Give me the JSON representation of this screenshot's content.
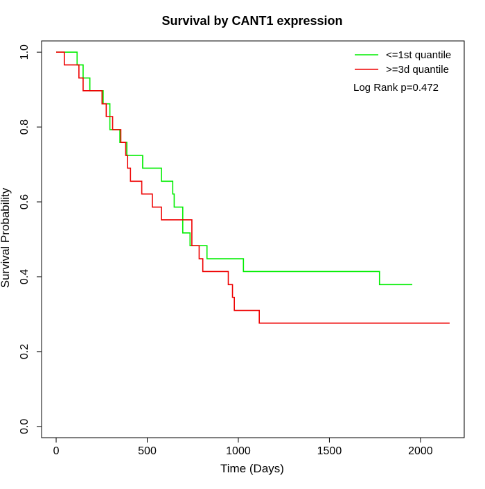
{
  "chart_data": {
    "type": "line",
    "title": "Survival by CANT1 expression",
    "xlabel": "Time (Days)",
    "ylabel": "Survival Probability",
    "xlim": [
      -80,
      2240
    ],
    "ylim": [
      -0.03,
      1.03
    ],
    "x_ticks": [
      0,
      500,
      1000,
      1500,
      2000
    ],
    "x_tick_labels": [
      "0",
      "500",
      "1000",
      "1500",
      "2000"
    ],
    "y_ticks": [
      0.0,
      0.2,
      0.4,
      0.6,
      0.8,
      1.0
    ],
    "y_tick_labels": [
      "0.0",
      "0.2",
      "0.4",
      "0.6",
      "0.8",
      "1.0"
    ],
    "grid": false,
    "legend_position": "top-right",
    "annotation": "Log Rank p=0.472",
    "series": [
      {
        "name": "<=1st quantile",
        "color": "#00ee00",
        "step": true,
        "points": [
          [
            0,
            1.0
          ],
          [
            115,
            1.0
          ],
          [
            115,
            0.966
          ],
          [
            148,
            0.966
          ],
          [
            148,
            0.931
          ],
          [
            185,
            0.931
          ],
          [
            185,
            0.897
          ],
          [
            258,
            0.897
          ],
          [
            258,
            0.862
          ],
          [
            295,
            0.862
          ],
          [
            295,
            0.793
          ],
          [
            350,
            0.793
          ],
          [
            350,
            0.759
          ],
          [
            388,
            0.759
          ],
          [
            388,
            0.724
          ],
          [
            475,
            0.724
          ],
          [
            475,
            0.69
          ],
          [
            578,
            0.69
          ],
          [
            578,
            0.655
          ],
          [
            640,
            0.655
          ],
          [
            640,
            0.621
          ],
          [
            648,
            0.621
          ],
          [
            648,
            0.586
          ],
          [
            695,
            0.586
          ],
          [
            695,
            0.517
          ],
          [
            735,
            0.517
          ],
          [
            735,
            0.483
          ],
          [
            828,
            0.483
          ],
          [
            828,
            0.448
          ],
          [
            1028,
            0.448
          ],
          [
            1028,
            0.414
          ],
          [
            1775,
            0.414
          ],
          [
            1775,
            0.379
          ],
          [
            1955,
            0.379
          ]
        ]
      },
      {
        "name": ">=3d quantile",
        "color": "#ee0000",
        "step": true,
        "points": [
          [
            0,
            1.0
          ],
          [
            45,
            1.0
          ],
          [
            45,
            0.966
          ],
          [
            125,
            0.966
          ],
          [
            125,
            0.931
          ],
          [
            148,
            0.931
          ],
          [
            148,
            0.897
          ],
          [
            252,
            0.897
          ],
          [
            252,
            0.862
          ],
          [
            275,
            0.862
          ],
          [
            275,
            0.828
          ],
          [
            310,
            0.828
          ],
          [
            310,
            0.793
          ],
          [
            355,
            0.793
          ],
          [
            355,
            0.759
          ],
          [
            382,
            0.759
          ],
          [
            382,
            0.724
          ],
          [
            392,
            0.724
          ],
          [
            392,
            0.69
          ],
          [
            408,
            0.69
          ],
          [
            408,
            0.655
          ],
          [
            470,
            0.655
          ],
          [
            470,
            0.621
          ],
          [
            528,
            0.621
          ],
          [
            528,
            0.586
          ],
          [
            578,
            0.586
          ],
          [
            578,
            0.552
          ],
          [
            745,
            0.552
          ],
          [
            745,
            0.483
          ],
          [
            785,
            0.483
          ],
          [
            785,
            0.448
          ],
          [
            805,
            0.448
          ],
          [
            805,
            0.414
          ],
          [
            945,
            0.414
          ],
          [
            945,
            0.379
          ],
          [
            968,
            0.379
          ],
          [
            968,
            0.345
          ],
          [
            978,
            0.345
          ],
          [
            978,
            0.31
          ],
          [
            1115,
            0.31
          ],
          [
            1115,
            0.276
          ],
          [
            2160,
            0.276
          ]
        ]
      }
    ]
  }
}
